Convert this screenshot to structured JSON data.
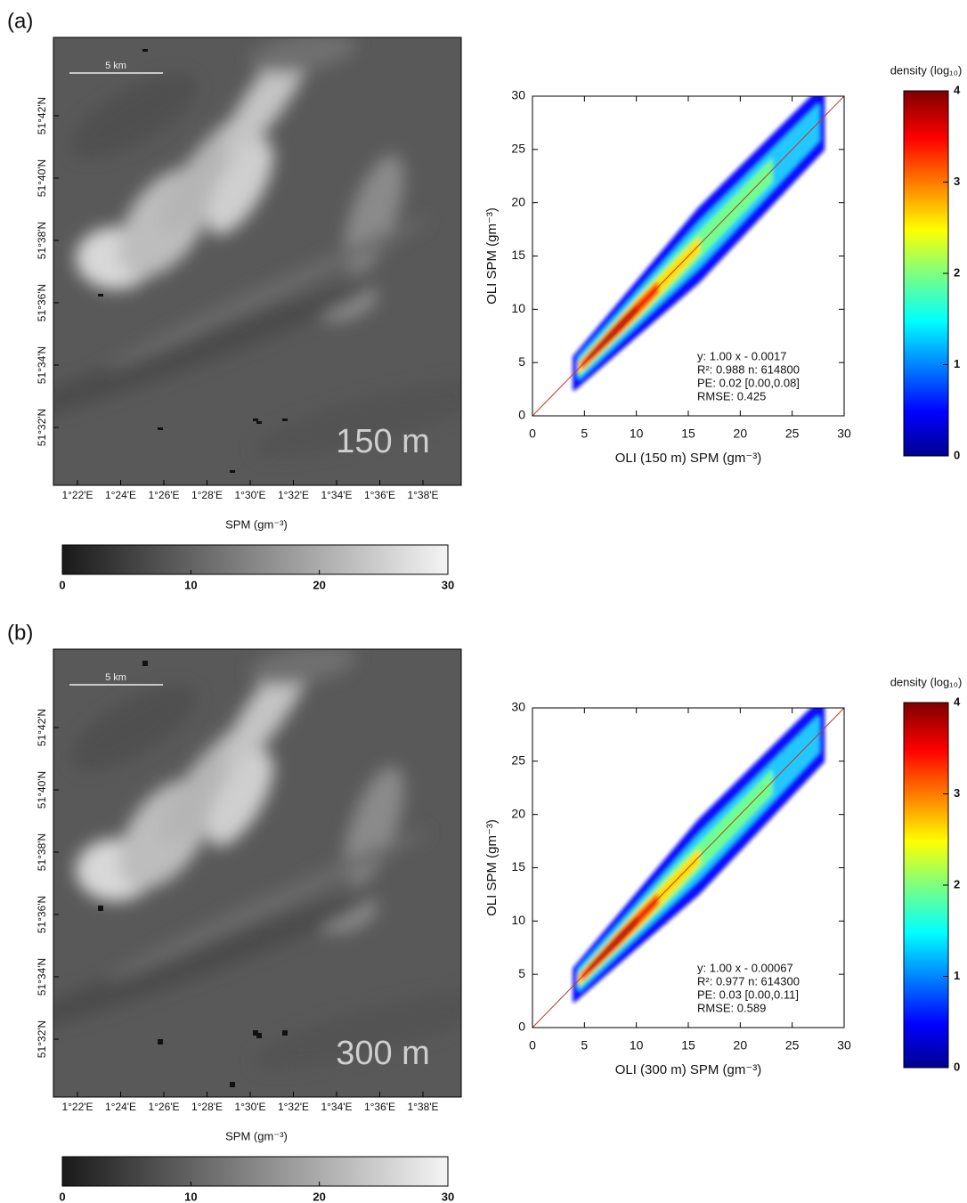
{
  "panels": [
    {
      "label": "(a)",
      "resolution": "150 m",
      "scale_bar": "5 km",
      "lat_ticks": [
        "51°42'N",
        "51°40'N",
        "51°38'N",
        "51°36'N",
        "51°34'N",
        "51°32'N"
      ],
      "lon_ticks": [
        "1°22'E",
        "1°24'E",
        "1°26'E",
        "1°28'E",
        "1°30'E",
        "1°32'E",
        "1°34'E",
        "1°36'E",
        "1°38'E"
      ],
      "colorbar": {
        "label": "SPM (gm⁻³)",
        "lim": [
          0,
          30
        ],
        "ticks": [
          0,
          10,
          20,
          30
        ]
      }
    },
    {
      "label": "(b)",
      "resolution": "300 m",
      "scale_bar": "5 km",
      "lat_ticks": [
        "51°42'N",
        "51°40'N",
        "51°38'N",
        "51°36'N",
        "51°34'N",
        "51°32'N"
      ],
      "lon_ticks": [
        "1°22'E",
        "1°24'E",
        "1°26'E",
        "1°28'E",
        "1°30'E",
        "1°32'E",
        "1°34'E",
        "1°36'E",
        "1°38'E"
      ],
      "colorbar": {
        "label": "SPM (gm⁻³)",
        "lim": [
          0,
          30
        ],
        "ticks": [
          0,
          10,
          20,
          30
        ]
      }
    }
  ],
  "chart_data": [
    {
      "type": "scatter",
      "xlabel": "OLI (150 m) SPM (gm⁻³)",
      "ylabel": "OLI SPM (gm⁻³)",
      "xlim": [
        0,
        30
      ],
      "ylim": [
        0,
        30
      ],
      "xticks": [
        0,
        5,
        10,
        15,
        20,
        25,
        30
      ],
      "yticks": [
        0,
        5,
        10,
        15,
        20,
        25,
        30
      ],
      "annotations": [
        "y:  1.00 x - 0.0017",
        "R²: 0.988 n:  614800",
        "PE: 0.02 [0.00,0.08]",
        "RMSE: 0.425"
      ],
      "colorbar": {
        "label": "density (log₁₀)",
        "lim": [
          0,
          4
        ],
        "ticks": [
          0,
          1,
          2,
          3,
          4
        ]
      }
    },
    {
      "type": "scatter",
      "xlabel": "OLI (300 m) SPM (gm⁻³)",
      "ylabel": "OLI SPM (gm⁻³)",
      "xlim": [
        0,
        30
      ],
      "ylim": [
        0,
        30
      ],
      "xticks": [
        0,
        5,
        10,
        15,
        20,
        25,
        30
      ],
      "yticks": [
        0,
        5,
        10,
        15,
        20,
        25,
        30
      ],
      "annotations": [
        "y:  1.00 x - 0.00067",
        "R²: 0.977 n:  614300",
        "PE: 0.03 [0.00,0.11]",
        "RMSE: 0.589"
      ],
      "colorbar": {
        "label": "density (log₁₀)",
        "lim": [
          0,
          4
        ],
        "ticks": [
          0,
          1,
          2,
          3,
          4
        ]
      }
    }
  ]
}
